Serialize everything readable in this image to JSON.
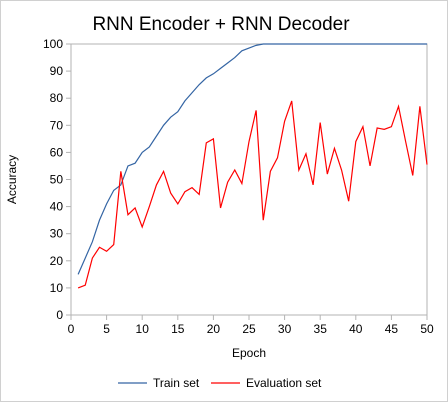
{
  "chart_data": {
    "type": "line",
    "title": "RNN Encoder + RNN Decoder",
    "xlabel": "Epoch",
    "ylabel": "Accuracy",
    "xlim": [
      0,
      50
    ],
    "ylim": [
      0,
      100
    ],
    "x_ticks": [
      "0",
      "5",
      "10",
      "15",
      "20",
      "25",
      "30",
      "35",
      "40",
      "45",
      "50"
    ],
    "y_ticks": [
      "0",
      "10",
      "20",
      "30",
      "40",
      "50",
      "60",
      "70",
      "80",
      "90",
      "100"
    ],
    "grid": "none",
    "legend_position": "bottom",
    "x": [
      1,
      2,
      3,
      4,
      5,
      6,
      7,
      8,
      9,
      10,
      11,
      12,
      13,
      14,
      15,
      16,
      17,
      18,
      19,
      20,
      21,
      22,
      23,
      24,
      25,
      26,
      27,
      28,
      29,
      30,
      31,
      32,
      33,
      34,
      35,
      36,
      37,
      38,
      39,
      40,
      41,
      42,
      43,
      44,
      45,
      46,
      47,
      48,
      49,
      50
    ],
    "series": [
      {
        "name": "Train set",
        "color": "#3465a4",
        "values": [
          15,
          21,
          27,
          35,
          41,
          46,
          48,
          55,
          56,
          60,
          62,
          66,
          70,
          73,
          75,
          79,
          82,
          85,
          87.5,
          89,
          91,
          93,
          95,
          97.5,
          98.5,
          99.5,
          100,
          100,
          100,
          100,
          100,
          100,
          100,
          100,
          100,
          100,
          100,
          100,
          100,
          100,
          100,
          100,
          100,
          100,
          100,
          100,
          100,
          100,
          100,
          100
        ]
      },
      {
        "name": "Evaluation set",
        "color": "#ff0000",
        "values": [
          10,
          11,
          21,
          25,
          23.5,
          26,
          53,
          37,
          39.5,
          32.5,
          40,
          48,
          53,
          45,
          41,
          45.5,
          47,
          44.5,
          63.5,
          65,
          39.5,
          49,
          53.5,
          48.5,
          64,
          75.5,
          35,
          53,
          58,
          71.5,
          79,
          53.5,
          59.5,
          48,
          71,
          52,
          61.5,
          53.5,
          42,
          64,
          69.5,
          55,
          69,
          68.5,
          69.5,
          77,
          64,
          51.5,
          77,
          55.5
        ]
      }
    ]
  }
}
